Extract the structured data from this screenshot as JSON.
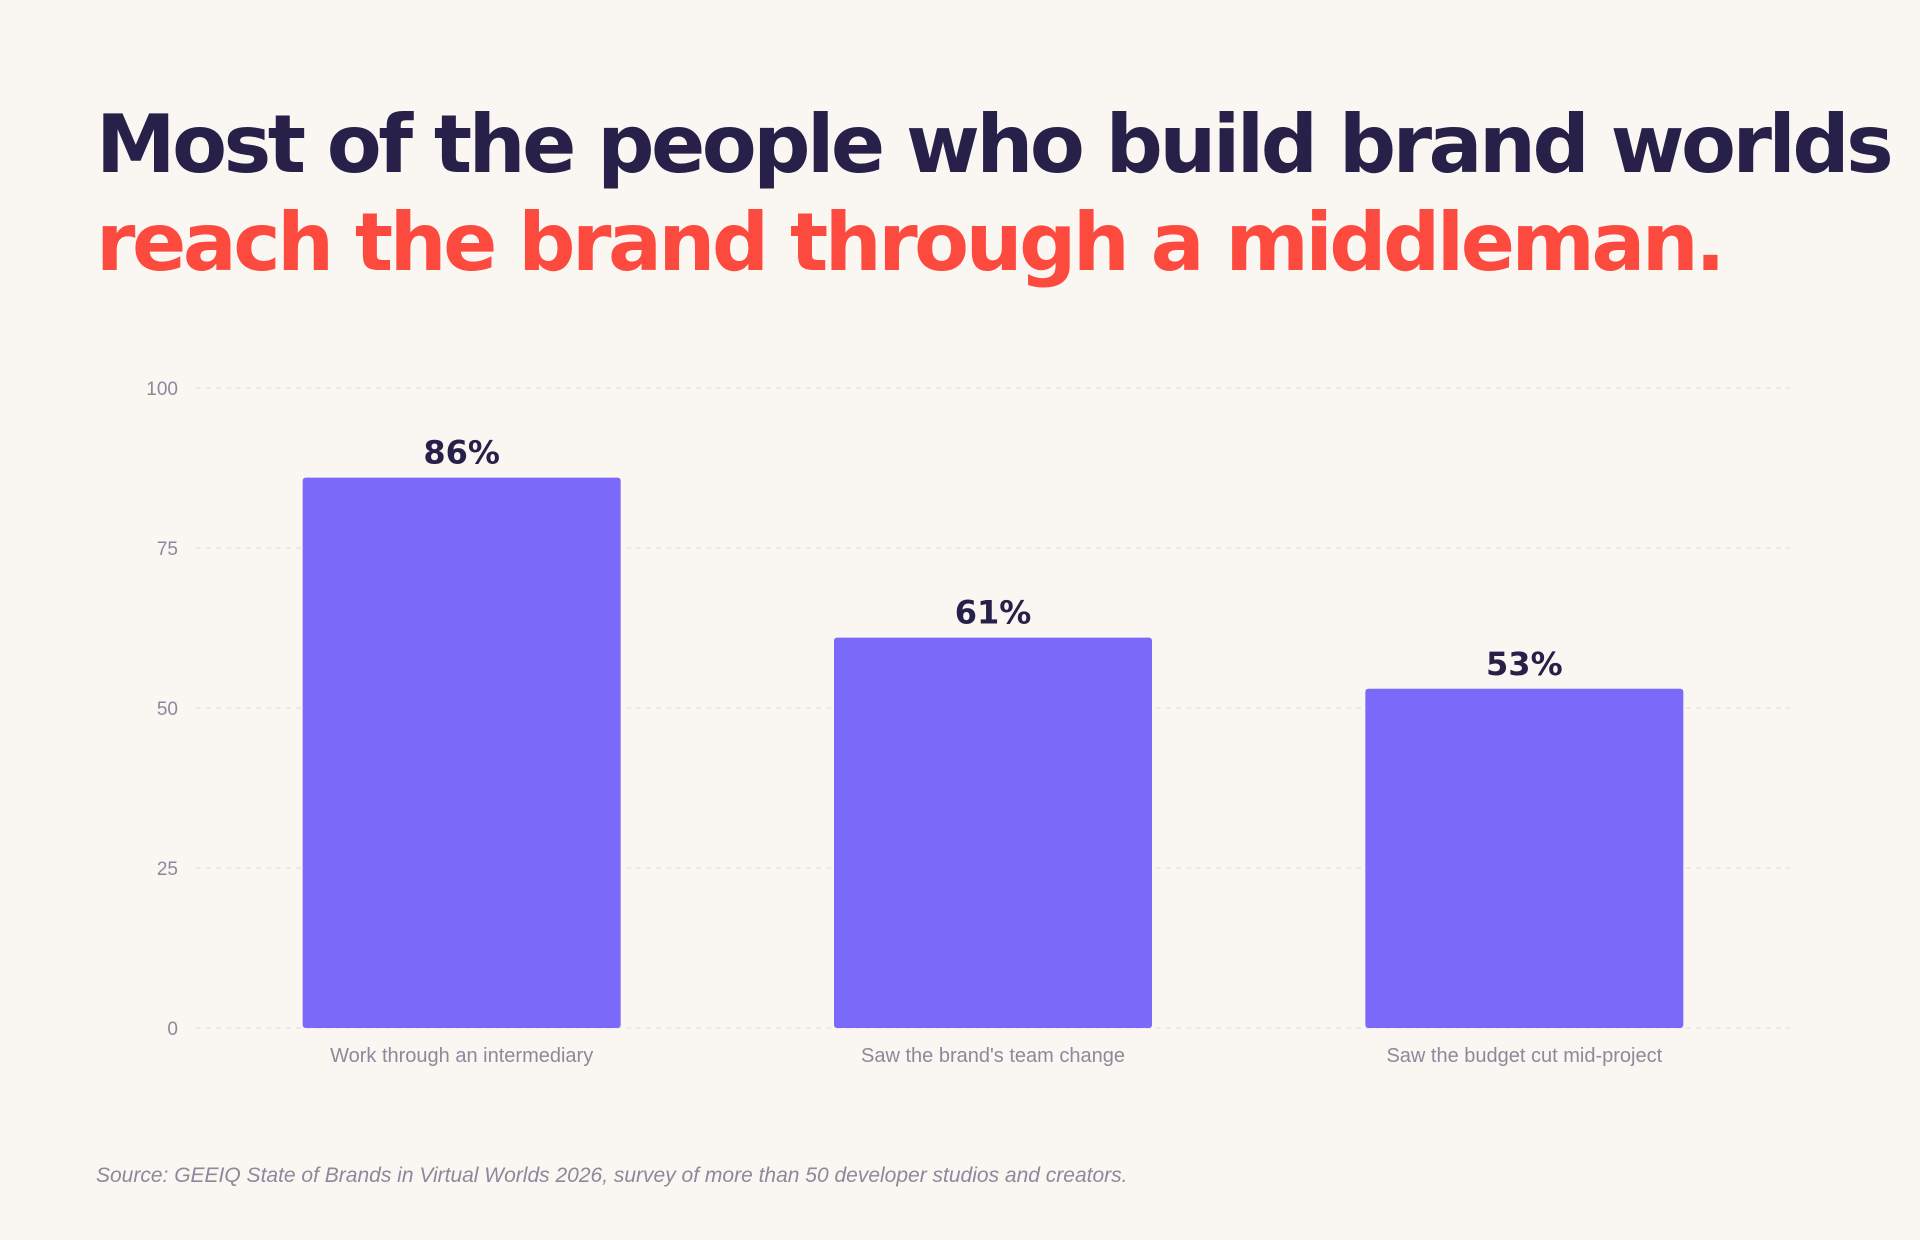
{
  "headline": {
    "line1": "Most of the people who build brand worlds",
    "line2": "reach the brand through a middleman."
  },
  "source": "Source: GEEIQ State of Brands in Virtual Worlds 2026, survey of more than 50 developer studios and creators.",
  "colors": {
    "bar": "#7b69fa",
    "headline_primary": "#27214a",
    "headline_accent": "#fd4a3f",
    "background": "#faf6f2",
    "muted_text": "#8d889c"
  },
  "chart_data": {
    "type": "bar",
    "categories": [
      "Work through an intermediary",
      "Saw the brand's team change",
      "Saw the budget cut mid-project"
    ],
    "values": [
      86,
      61,
      53
    ],
    "value_labels": [
      "86%",
      "61%",
      "53%"
    ],
    "ylim": [
      0,
      100
    ],
    "yticks": [
      0,
      25,
      50,
      75,
      100
    ],
    "grid": true,
    "legend": "none"
  }
}
